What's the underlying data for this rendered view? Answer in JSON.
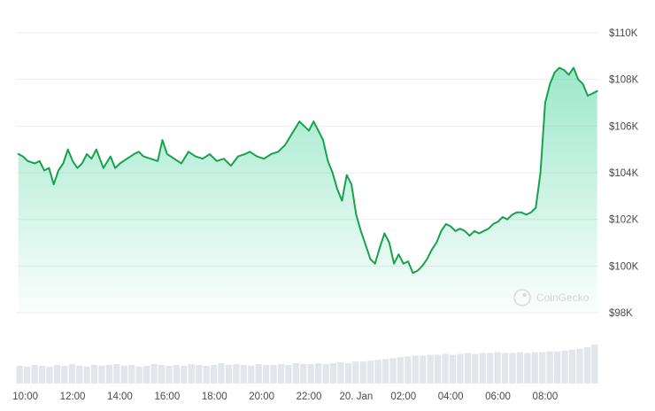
{
  "chart_data": {
    "type": "area",
    "title": "",
    "xlabel": "",
    "ylabel": "",
    "ylim": [
      98000,
      110000
    ],
    "grid": true,
    "watermark": "CoinGecko",
    "y_ticks": [
      "$110K",
      "$108K",
      "$106K",
      "$104K",
      "$102K",
      "$100K",
      "$98K"
    ],
    "y_tick_values": [
      110000,
      108000,
      106000,
      104000,
      102000,
      100000,
      98000
    ],
    "x_ticks": [
      "10:00",
      "12:00",
      "14:00",
      "16:00",
      "18:00",
      "20:00",
      "22:00",
      "20. Jan",
      "02:00",
      "04:00",
      "06:00",
      "08:00"
    ],
    "x_tick_hours": [
      10,
      12,
      14,
      16,
      18,
      20,
      22,
      24,
      26,
      28,
      30,
      32
    ],
    "colors": {
      "line": "#16a34a",
      "fill": "#16c784",
      "volume": "#e2e5ea",
      "grid": "#eeeeee",
      "text": "#4a4a4a"
    },
    "series": [
      {
        "x": [
          9.7,
          9.9,
          10.1,
          10.4,
          10.6,
          10.8,
          11.0,
          11.2,
          11.4,
          11.6,
          11.8,
          12.0,
          12.2,
          12.4,
          12.6,
          12.8,
          13.0,
          13.3,
          13.6,
          13.8,
          14.0,
          14.3,
          14.6,
          14.8,
          15.0,
          15.3,
          15.6,
          15.8,
          16.0,
          16.3,
          16.6,
          16.9,
          17.2,
          17.5,
          17.8,
          18.1,
          18.4,
          18.7,
          19.0,
          19.3,
          19.5,
          19.8,
          20.1,
          20.4,
          20.7,
          21.0,
          21.3,
          21.6,
          21.8,
          22.0,
          22.2,
          22.4,
          22.6,
          22.8,
          23.0,
          23.2,
          23.4,
          23.6,
          23.8,
          24.0,
          24.2,
          24.4,
          24.6,
          24.8,
          25.0,
          25.2,
          25.4,
          25.6,
          25.8,
          26.0,
          26.2,
          26.4,
          26.6,
          26.8,
          27.0,
          27.2,
          27.4,
          27.6,
          27.8,
          28.0,
          28.2,
          28.4,
          28.6,
          28.8,
          29.0,
          29.2,
          29.4,
          29.6,
          29.8,
          30.0,
          30.2,
          30.4,
          30.6,
          30.8,
          31.0,
          31.2,
          31.4,
          31.6,
          31.8,
          32.0,
          32.2,
          32.4,
          32.6,
          32.8,
          33.0,
          33.2,
          33.4,
          33.6,
          33.8,
          34.0,
          34.2
        ],
        "y": [
          104800,
          104700,
          104500,
          104400,
          104500,
          104100,
          104200,
          103500,
          104100,
          104400,
          105000,
          104500,
          104200,
          104400,
          104800,
          104600,
          105000,
          104200,
          104700,
          104200,
          104400,
          104600,
          104800,
          104900,
          104700,
          104600,
          104500,
          105400,
          104800,
          104600,
          104400,
          104900,
          104700,
          104600,
          104800,
          104500,
          104600,
          104300,
          104700,
          104800,
          104900,
          104700,
          104600,
          104800,
          104900,
          105200,
          105700,
          106200,
          106000,
          105800,
          106200,
          105800,
          105400,
          104500,
          104000,
          103300,
          102800,
          103900,
          103500,
          102200,
          101500,
          100900,
          100300,
          100100,
          100800,
          101400,
          101000,
          100100,
          100500,
          100100,
          100200,
          99700,
          99800,
          100000,
          100300,
          100700,
          101000,
          101500,
          101800,
          101700,
          101500,
          101600,
          101500,
          101300,
          101500,
          101400,
          101500,
          101600,
          101800,
          101900,
          102100,
          102000,
          102200,
          102300,
          102300,
          102200,
          102300,
          102500,
          104000,
          107000,
          107800,
          108300,
          108500,
          108400,
          108200,
          108500,
          108000,
          107800,
          107300,
          107400,
          107500
        ]
      }
    ],
    "volume": [
      2.1,
      2.0,
      2.2,
      2.1,
      2.0,
      2.2,
      2.1,
      2.3,
      2.1,
      2.0,
      2.2,
      2.1,
      2.2,
      2.3,
      2.1,
      2.2,
      2.0,
      2.1,
      2.3,
      2.2,
      2.1,
      2.2,
      2.1,
      2.3,
      2.2,
      2.1,
      2.2,
      2.4,
      2.2,
      2.3,
      2.2,
      2.1,
      2.3,
      2.2,
      2.2,
      2.3,
      2.2,
      2.4,
      2.3,
      2.3,
      2.4,
      2.3,
      2.4,
      2.5,
      2.4,
      2.6,
      2.6,
      2.7,
      2.8,
      2.9,
      3.0,
      3.1,
      3.2,
      3.3,
      3.3,
      3.4,
      3.4,
      3.5,
      3.4,
      3.5,
      3.6,
      3.5,
      3.6,
      3.6,
      3.7,
      3.6,
      3.6,
      3.7,
      3.6,
      3.7,
      3.7,
      3.8,
      3.8,
      3.9,
      4.0,
      4.1,
      4.3,
      4.6
    ]
  }
}
